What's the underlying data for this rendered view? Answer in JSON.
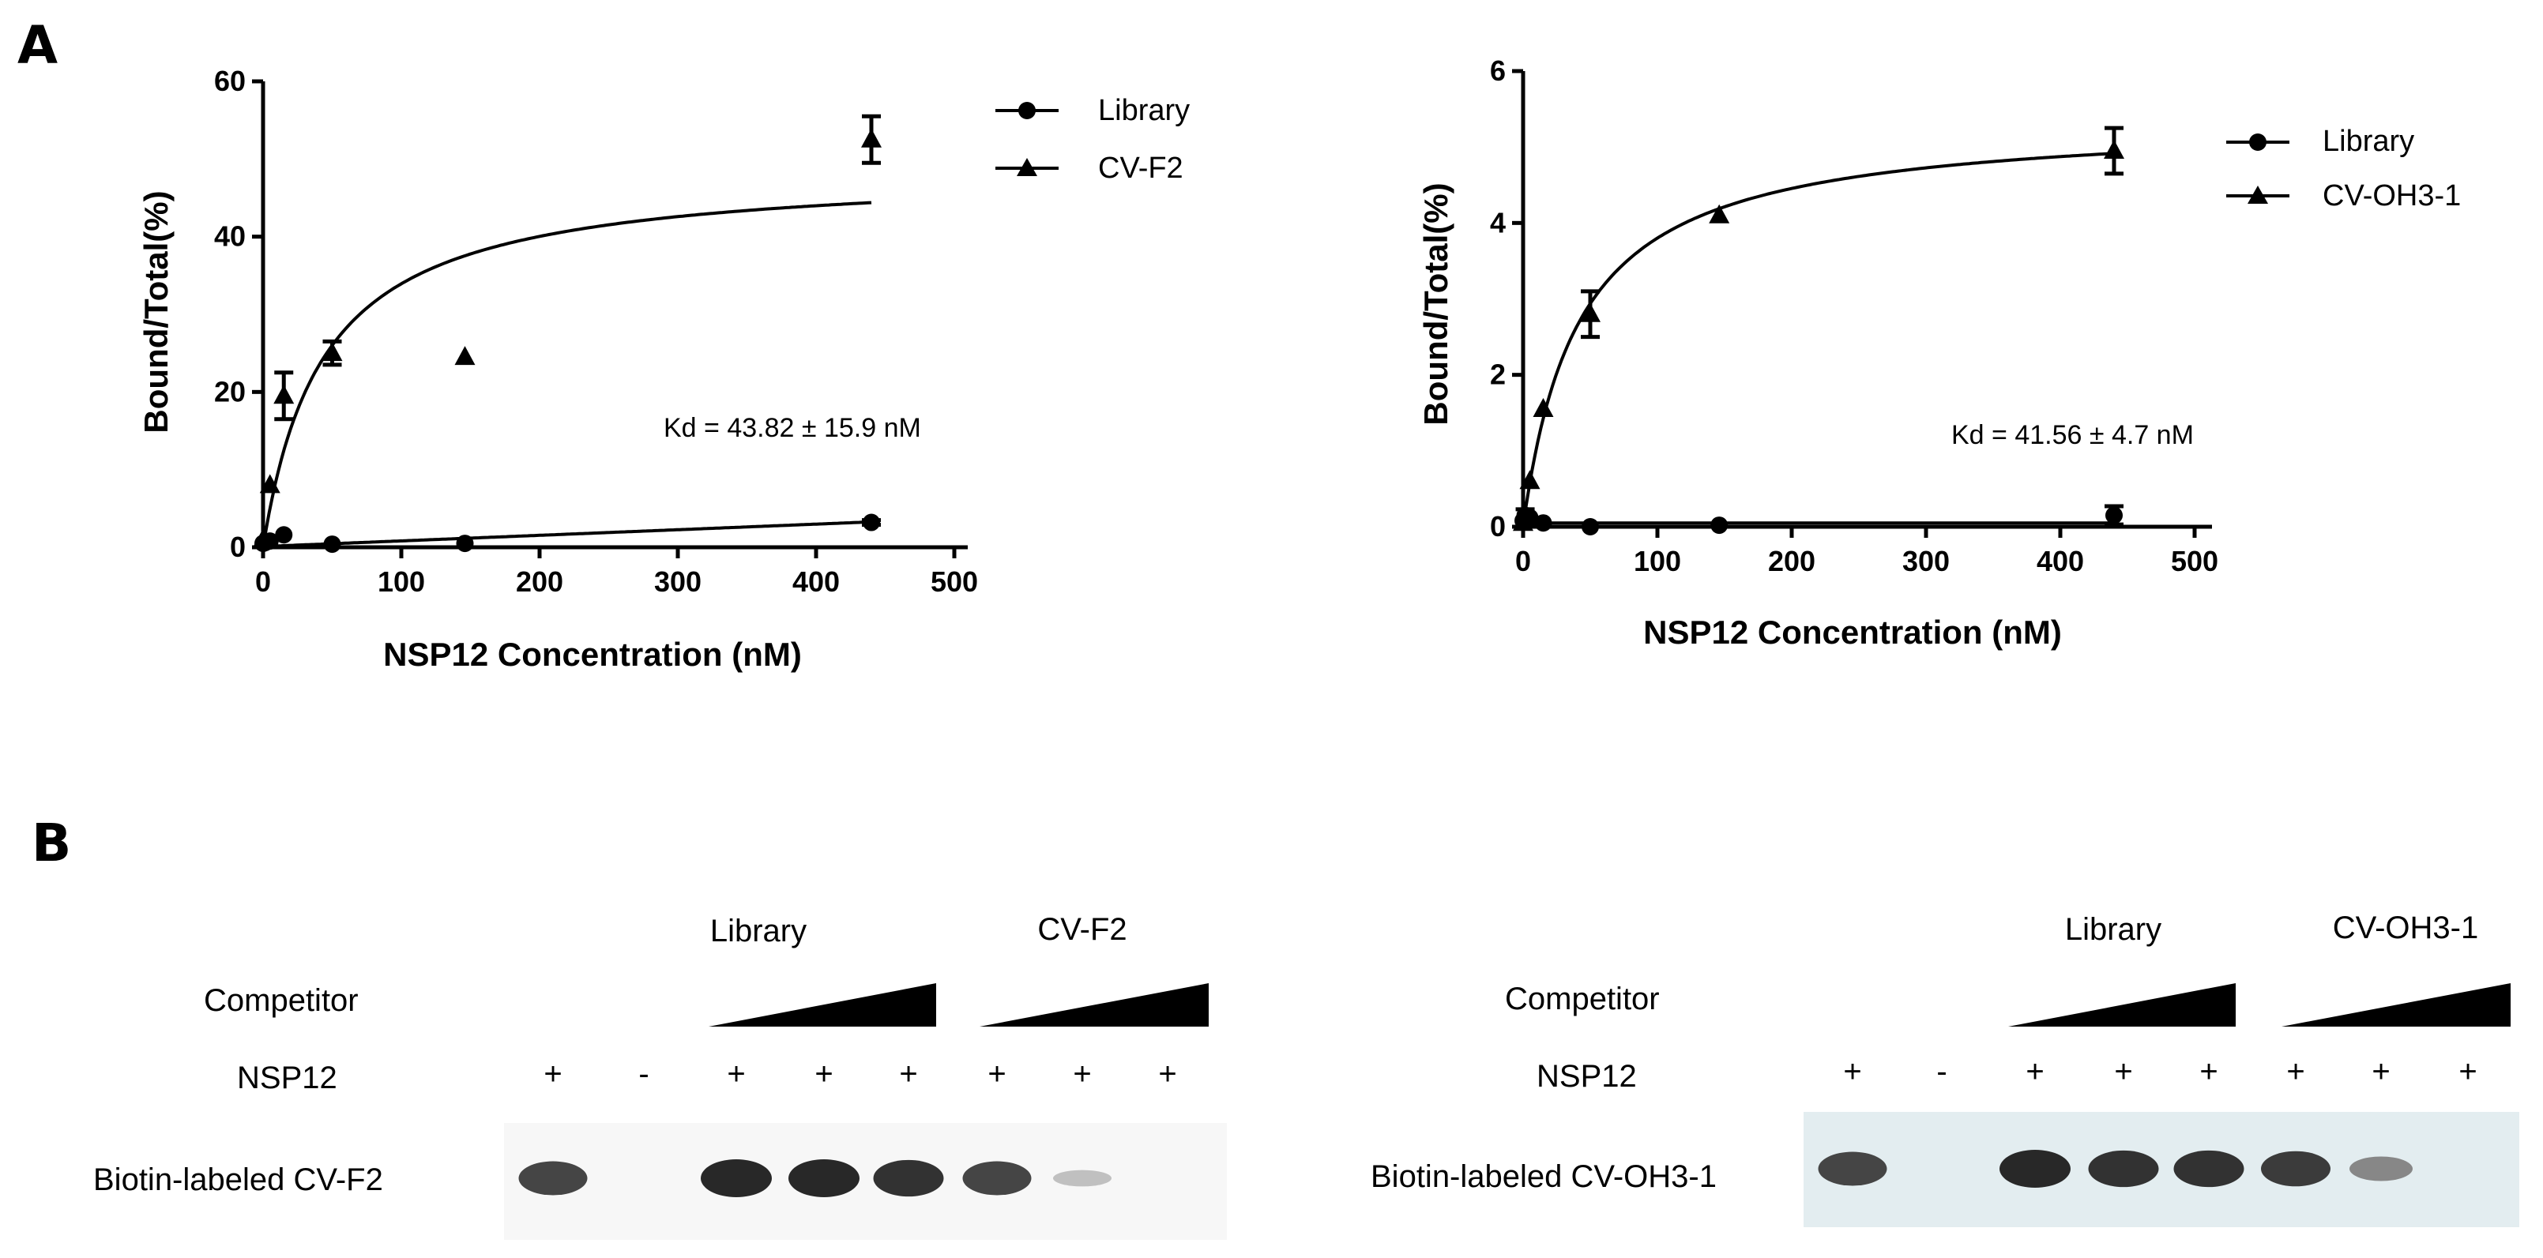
{
  "panels": {
    "a_label": "A",
    "b_label": "B"
  },
  "chart_data": [
    {
      "type": "scatter",
      "title": "",
      "xlabel": "NSP12 Concentration (nM)",
      "ylabel": "Bound/Total(%)",
      "xlim": [
        0,
        500
      ],
      "ylim": [
        0,
        60
      ],
      "xticks": [
        "0",
        "100",
        "200",
        "300",
        "400",
        "500"
      ],
      "yticks": [
        "0",
        "20",
        "40",
        "60"
      ],
      "legend_position": "top-right",
      "annotation": "Kd = 43.82 ± 15.9 nM",
      "series": [
        {
          "name": "Library",
          "marker": "circle",
          "points": [
            {
              "x": 0,
              "y": 0.5,
              "err": 0
            },
            {
              "x": 1.5,
              "y": 0.6,
              "err": 0
            },
            {
              "x": 5,
              "y": 0.8,
              "err": 0
            },
            {
              "x": 15,
              "y": 1.6,
              "err": 0
            },
            {
              "x": 50,
              "y": 0.4,
              "err": 0
            },
            {
              "x": 146,
              "y": 0.5,
              "err": 0
            },
            {
              "x": 440,
              "y": 3.2,
              "err": 0.3
            }
          ],
          "fit": {
            "model": "linear",
            "slope": 0.0072,
            "intercept": 0.1,
            "xmax": 440
          }
        },
        {
          "name": "CV-F2",
          "marker": "triangle",
          "points": [
            {
              "x": 0,
              "y": 1.0,
              "err": 0
            },
            {
              "x": 5,
              "y": 8.0,
              "err": 0
            },
            {
              "x": 15,
              "y": 19.5,
              "err": 3.0
            },
            {
              "x": 50,
              "y": 25.0,
              "err": 1.5
            },
            {
              "x": 146,
              "y": 24.5,
              "err": 0
            },
            {
              "x": 440,
              "y": 52.5,
              "err": 3.0
            }
          ],
          "fit": {
            "model": "one-site",
            "bmax": 48.8,
            "kd": 43.82,
            "xmax": 440
          }
        }
      ]
    },
    {
      "type": "scatter",
      "title": "",
      "xlabel": "NSP12 Concentration (nM)",
      "ylabel": "Bound/Total(%)",
      "xlim": [
        0,
        500
      ],
      "ylim": [
        0,
        6
      ],
      "xticks": [
        "0",
        "100",
        "200",
        "300",
        "400",
        "500"
      ],
      "yticks": [
        "0",
        "2",
        "4",
        "6"
      ],
      "legend_position": "top-right",
      "annotation": "Kd = 41.56 ± 4.7 nM",
      "series": [
        {
          "name": "Library",
          "marker": "circle",
          "points": [
            {
              "x": 0,
              "y": 0.08,
              "err": 0
            },
            {
              "x": 1.5,
              "y": 0.15,
              "err": 0.08
            },
            {
              "x": 5,
              "y": 0.12,
              "err": 0
            },
            {
              "x": 15,
              "y": 0.05,
              "err": 0
            },
            {
              "x": 50,
              "y": 0.0,
              "err": 0
            },
            {
              "x": 146,
              "y": 0.02,
              "err": 0
            },
            {
              "x": 440,
              "y": 0.15,
              "err": 0.12
            }
          ],
          "fit": {
            "model": "linear",
            "slope": 0.0,
            "intercept": 0.05,
            "xmax": 440
          }
        },
        {
          "name": "CV-OH3-1",
          "marker": "triangle",
          "points": [
            {
              "x": 0,
              "y": 0.05,
              "err": 0
            },
            {
              "x": 5,
              "y": 0.6,
              "err": 0
            },
            {
              "x": 15,
              "y": 1.55,
              "err": 0
            },
            {
              "x": 50,
              "y": 2.8,
              "err": 0.3
            },
            {
              "x": 146,
              "y": 4.1,
              "err": 0
            },
            {
              "x": 440,
              "y": 4.95,
              "err": 0.3
            }
          ],
          "fit": {
            "model": "one-site",
            "bmax": 5.38,
            "kd": 41.56,
            "xmax": 440
          }
        }
      ]
    }
  ],
  "blots": [
    {
      "competitor_label": "Competitor",
      "nsp12_label": "NSP12",
      "library_label": "Library",
      "probe_group_label": "CV-F2",
      "band_row_label": "Biotin-labeled CV-F2",
      "signs": [
        "+",
        "-",
        "+",
        "+",
        "+",
        "+",
        "+",
        "+"
      ],
      "band_intensity": [
        0.85,
        0,
        1.0,
        1.0,
        0.95,
        0.85,
        0.2,
        0
      ],
      "membrane_color": "#f7f7f7"
    },
    {
      "competitor_label": "Competitor",
      "nsp12_label": "NSP12",
      "library_label": "Library",
      "probe_group_label": "CV-OH3-1",
      "band_row_label": "Biotin-labeled CV-OH3-1",
      "signs": [
        "+",
        "-",
        "+",
        "+",
        "+",
        "+",
        "+",
        "+"
      ],
      "band_intensity": [
        0.85,
        0,
        1.0,
        0.95,
        0.95,
        0.9,
        0.5,
        0
      ],
      "membrane_color": "#e3edf0"
    }
  ]
}
